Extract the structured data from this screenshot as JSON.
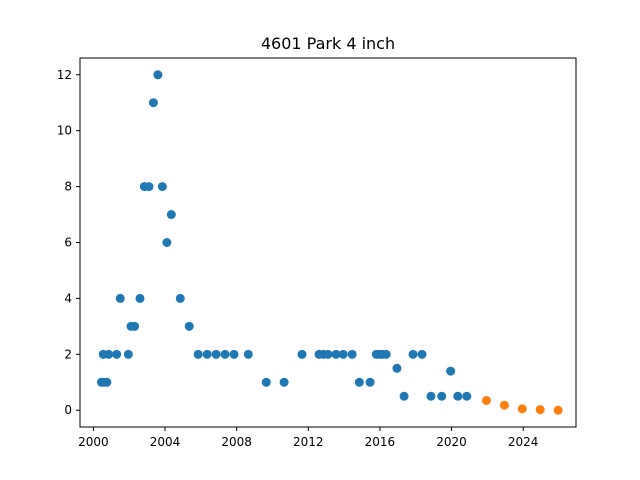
{
  "chart_data": {
    "type": "scatter",
    "title": "4601 Park 4 inch",
    "xlabel": "",
    "ylabel": "",
    "xlim": [
      1999.25,
      2026.95
    ],
    "ylim": [
      -0.6,
      12.6
    ],
    "x_ticks": [
      2000,
      2004,
      2008,
      2012,
      2016,
      2020,
      2024
    ],
    "y_ticks": [
      0,
      2,
      4,
      6,
      8,
      10,
      12
    ],
    "grid": false,
    "legend": "none",
    "series": [
      {
        "color": "#1f77b4",
        "points": [
          [
            2000.45,
            1
          ],
          [
            2000.55,
            2
          ],
          [
            2000.6,
            1
          ],
          [
            2000.75,
            1
          ],
          [
            2000.85,
            2
          ],
          [
            2001.3,
            2
          ],
          [
            2001.5,
            4
          ],
          [
            2001.95,
            2
          ],
          [
            2002.1,
            3
          ],
          [
            2002.3,
            3
          ],
          [
            2002.6,
            4
          ],
          [
            2002.85,
            8
          ],
          [
            2003.1,
            8
          ],
          [
            2003.35,
            11
          ],
          [
            2003.6,
            12
          ],
          [
            2003.85,
            8
          ],
          [
            2004.1,
            6
          ],
          [
            2004.35,
            7
          ],
          [
            2004.85,
            4
          ],
          [
            2005.35,
            3
          ],
          [
            2005.85,
            2
          ],
          [
            2006.35,
            2
          ],
          [
            2006.85,
            2
          ],
          [
            2007.35,
            2
          ],
          [
            2007.85,
            2
          ],
          [
            2008.65,
            2
          ],
          [
            2009.65,
            1
          ],
          [
            2010.65,
            1
          ],
          [
            2011.65,
            2
          ],
          [
            2012.6,
            2
          ],
          [
            2012.85,
            2
          ],
          [
            2013.1,
            2
          ],
          [
            2013.55,
            2
          ],
          [
            2013.95,
            2
          ],
          [
            2014.45,
            2
          ],
          [
            2014.85,
            1
          ],
          [
            2015.45,
            1
          ],
          [
            2015.8,
            2
          ],
          [
            2016.0,
            2
          ],
          [
            2016.15,
            2
          ],
          [
            2016.35,
            2
          ],
          [
            2016.95,
            1.5
          ],
          [
            2017.35,
            0.5
          ],
          [
            2017.85,
            2
          ],
          [
            2018.35,
            2
          ],
          [
            2018.85,
            0.5
          ],
          [
            2019.45,
            0.5
          ],
          [
            2019.95,
            1.4
          ],
          [
            2020.35,
            0.5
          ],
          [
            2020.85,
            0.5
          ]
        ]
      },
      {
        "color": "#ff7f0e",
        "points": [
          [
            2021.95,
            0.35
          ],
          [
            2022.95,
            0.18
          ],
          [
            2023.95,
            0.05
          ],
          [
            2024.95,
            0.02
          ],
          [
            2025.95,
            0.0
          ]
        ]
      }
    ]
  }
}
